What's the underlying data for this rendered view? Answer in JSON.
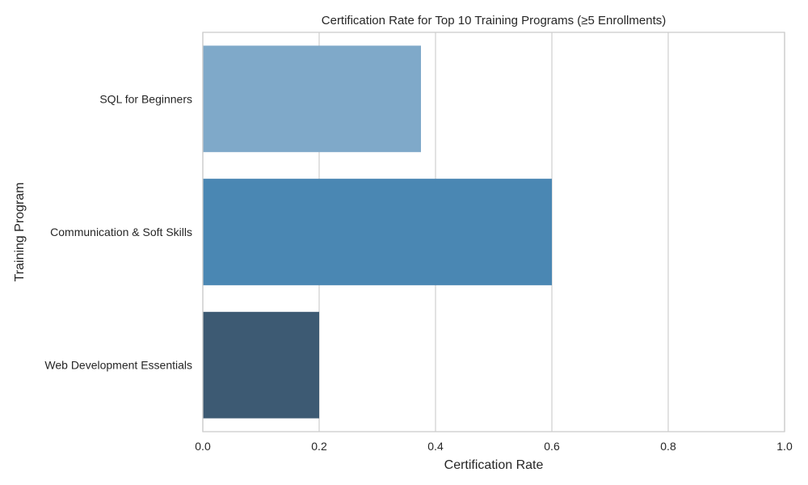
{
  "chart_data": {
    "type": "bar",
    "orientation": "horizontal",
    "title": "Certification Rate for Top 10 Training Programs (≥5 Enrollments)",
    "xlabel": "Certification Rate",
    "ylabel": "Training Program",
    "categories": [
      "SQL for Beginners",
      "Communication & Soft Skills",
      "Web Development Essentials"
    ],
    "values": [
      0.375,
      0.6,
      0.2
    ],
    "colors": [
      "#7fa9c9",
      "#4a87b3",
      "#3d5a73"
    ],
    "xlim": [
      0,
      1
    ],
    "xticks": [
      {
        "value": 0.0,
        "label": "0.0"
      },
      {
        "value": 0.2,
        "label": "0.2"
      },
      {
        "value": 0.4,
        "label": "0.4"
      },
      {
        "value": 0.6,
        "label": "0.6"
      },
      {
        "value": 0.8,
        "label": "0.8"
      },
      {
        "value": 1.0,
        "label": "1.0"
      }
    ],
    "grid": true,
    "grid_color": "#d3d3d3",
    "spine_color": "#cccccc"
  }
}
